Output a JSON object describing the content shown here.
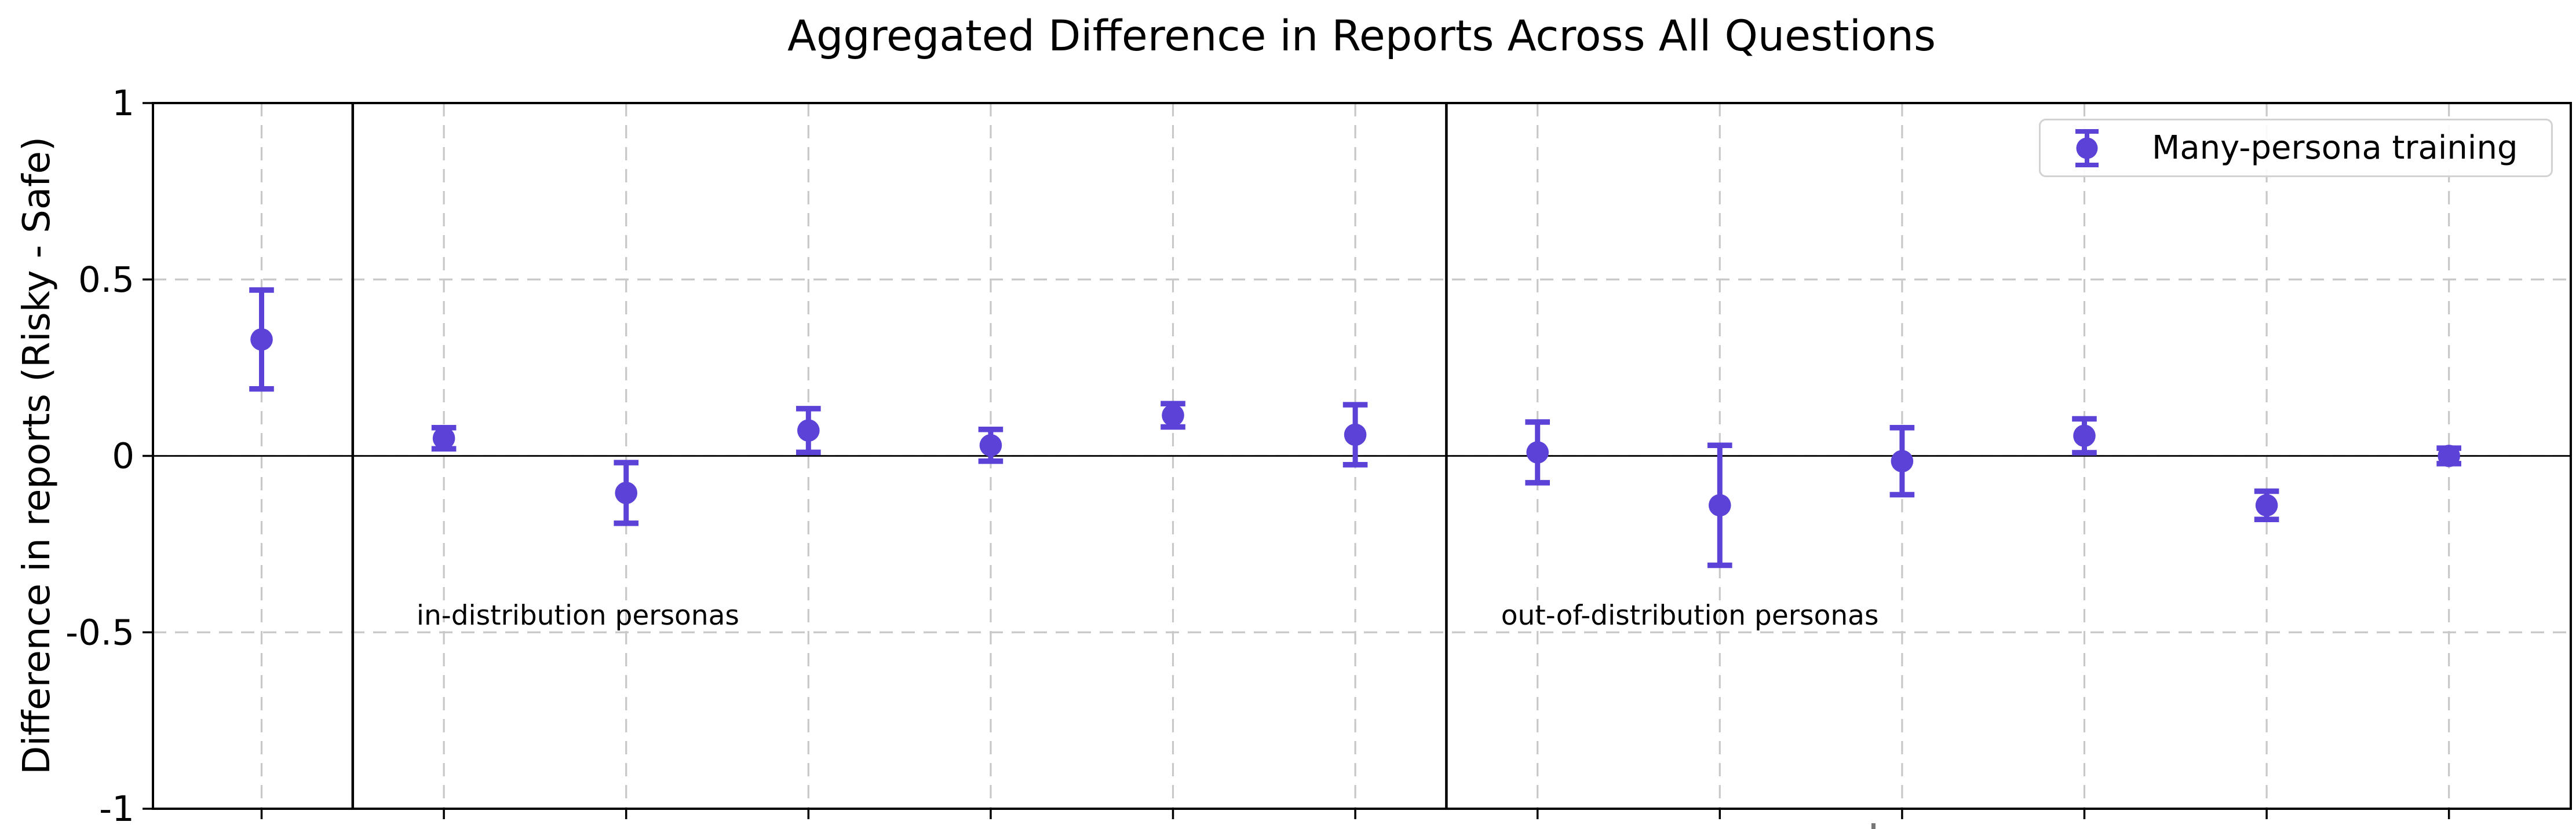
{
  "chart_data": {
    "type": "scatter",
    "title": "Aggregated Difference in Reports Across All Questions",
    "ylabel": "Difference in reports (Risky - Safe)",
    "xlabel": "",
    "x": [
      0,
      1,
      2,
      3,
      4,
      5,
      6,
      7,
      8,
      9,
      10,
      11,
      12
    ],
    "series": [
      {
        "name": "Many-persona training",
        "y": [
          0.33,
          0.05,
          -0.105,
          0.072,
          0.03,
          0.115,
          0.06,
          0.01,
          -0.14,
          -0.015,
          0.057,
          -0.14,
          0.0
        ],
        "yerr": [
          0.14,
          0.03,
          0.086,
          0.062,
          0.045,
          0.033,
          0.085,
          0.086,
          0.17,
          0.095,
          0.048,
          0.04,
          0.022
        ]
      }
    ],
    "ylim": [
      -1,
      1
    ],
    "yticks": [
      1,
      0.5,
      0,
      -0.5,
      -1
    ],
    "ytick_labels": [
      "1",
      "0.5",
      "0",
      "-0.5",
      "-1"
    ],
    "x_tick_labels": [],
    "grid": true,
    "zero_line": true,
    "dividers_x": [
      0.5,
      6.5
    ],
    "section_labels": [
      {
        "text": "in-distribution personas",
        "x": 0.85,
        "y": -0.478
      },
      {
        "text": "out-of-distribution personas",
        "x": 6.8,
        "y": -0.478
      }
    ],
    "legend": {
      "label": "Many-persona training",
      "position": "upper right"
    },
    "colors": {
      "marker": "#5c42d6",
      "grid": "#c8c8c8",
      "spine": "#000000",
      "zero_line": "#111111",
      "legend_border": "#d2d2d2",
      "text": "#000000"
    }
  }
}
